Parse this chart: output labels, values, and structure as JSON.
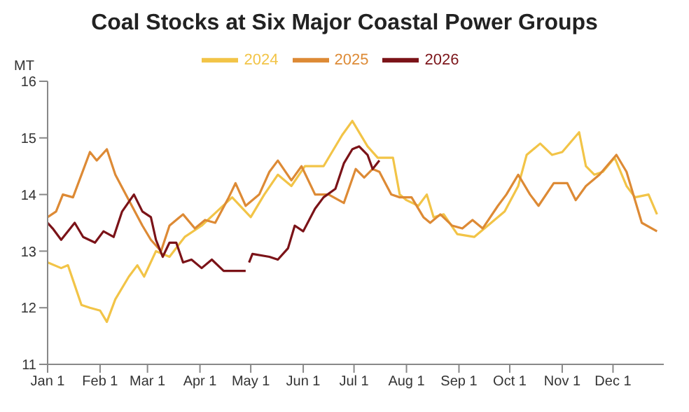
{
  "chart_data": {
    "type": "line",
    "title": "Coal Stocks at Six Major Coastal Power Groups",
    "ylabel": "MT",
    "legend": "top",
    "grid": false,
    "xlim": [
      "--01-01",
      "--12-31"
    ],
    "xticks": [
      {
        "value": "--01-01",
        "label": "Jan 1"
      },
      {
        "value": "--02-01",
        "label": "Feb 1"
      },
      {
        "value": "--03-01",
        "label": "Mar 1"
      },
      {
        "value": "--04-01",
        "label": "Apr 1"
      },
      {
        "value": "--05-01",
        "label": "May 1"
      },
      {
        "value": "--06-01",
        "label": "Jun 1"
      },
      {
        "value": "--07-01",
        "label": "Jul 1"
      },
      {
        "value": "--08-01",
        "label": "Aug 1"
      },
      {
        "value": "--09-01",
        "label": "Sep 1"
      },
      {
        "value": "--10-01",
        "label": "Oct 1"
      },
      {
        "value": "--11-01",
        "label": "Nov 1"
      },
      {
        "value": "--12-01",
        "label": "Dec 1"
      }
    ],
    "ylim": [
      11,
      16
    ],
    "yticks": [
      11,
      12,
      13,
      14,
      15,
      16
    ],
    "series": [
      {
        "name": "2024",
        "color": "#f2c447",
        "x": [
          "--01-01",
          "--01-09",
          "--01-13",
          "--01-17",
          "--01-21",
          "--01-26",
          "--02-01",
          "--02-05",
          "--02-10",
          "--02-18",
          "--02-23",
          "--02-27",
          "--03-06",
          "--03-14",
          "--03-23",
          "--04-02",
          "--04-11",
          "--04-20",
          "--05-01",
          "--05-09",
          "--05-17",
          "--05-25",
          "--06-02",
          "--06-13",
          "--06-24",
          "--06-30",
          "--07-09",
          "--07-15",
          "--07-24",
          "--07-28",
          "--08-01",
          "--08-08",
          "--08-13",
          "--08-17",
          "--08-23",
          "--08-31",
          "--09-10",
          "--09-20",
          "--09-28",
          "--10-06",
          "--10-11",
          "--10-19",
          "--10-26",
          "--11-01",
          "--11-11",
          "--11-15",
          "--11-20",
          "--11-25",
          "--12-02",
          "--12-09",
          "--12-14",
          "--12-22",
          "--12-27"
        ],
        "values": [
          12.8,
          12.7,
          12.75,
          12.4,
          12.05,
          12.0,
          11.95,
          11.75,
          12.15,
          12.55,
          12.75,
          12.55,
          13.0,
          12.9,
          13.25,
          13.45,
          13.7,
          13.95,
          13.6,
          14.0,
          14.35,
          14.15,
          14.5,
          14.5,
          15.05,
          15.3,
          14.85,
          14.65,
          14.65,
          14.0,
          13.9,
          13.8,
          14.0,
          13.6,
          13.65,
          13.3,
          13.25,
          13.5,
          13.7,
          14.15,
          14.7,
          14.9,
          14.7,
          14.75,
          15.1,
          14.5,
          14.35,
          14.4,
          14.65,
          14.15,
          13.95,
          14.0,
          13.65
        ]
      },
      {
        "name": "2025",
        "color": "#dd8a35",
        "x": [
          "--01-01",
          "--01-06",
          "--01-10",
          "--01-16",
          "--01-21",
          "--01-26",
          "--01-30",
          "--02-05",
          "--02-10",
          "--02-18",
          "--02-26",
          "--03-03",
          "--03-09",
          "--03-14",
          "--03-22",
          "--03-29",
          "--04-04",
          "--04-10",
          "--04-18",
          "--04-22",
          "--04-28",
          "--05-06",
          "--05-12",
          "--05-17",
          "--05-25",
          "--05-31",
          "--06-08",
          "--06-16",
          "--06-25",
          "--07-02",
          "--07-07",
          "--07-12",
          "--07-16",
          "--07-23",
          "--07-28",
          "--08-04",
          "--08-11",
          "--08-15",
          "--08-21",
          "--08-28",
          "--09-03",
          "--09-09",
          "--09-15",
          "--09-24",
          "--09-29",
          "--10-06",
          "--10-13",
          "--10-18",
          "--10-27",
          "--11-04",
          "--11-09",
          "--11-15",
          "--11-23",
          "--12-03",
          "--12-09",
          "--12-18",
          "--12-27"
        ],
        "values": [
          13.6,
          13.7,
          14.0,
          13.95,
          14.35,
          14.75,
          14.6,
          14.8,
          14.35,
          13.9,
          13.45,
          13.2,
          13.0,
          13.45,
          13.65,
          13.4,
          13.55,
          13.5,
          13.95,
          14.2,
          13.8,
          14.0,
          14.4,
          14.6,
          14.25,
          14.5,
          14.0,
          14.0,
          13.85,
          14.45,
          14.3,
          14.45,
          14.4,
          14.0,
          13.95,
          13.95,
          13.6,
          13.5,
          13.65,
          13.45,
          13.4,
          13.55,
          13.4,
          13.8,
          14.0,
          14.35,
          14.0,
          13.8,
          14.2,
          14.2,
          13.9,
          14.15,
          14.35,
          14.7,
          14.4,
          13.5,
          13.35
        ]
      },
      {
        "name": "2026",
        "color": "#7b1318",
        "x": [
          "--01-01",
          "--01-04",
          "--01-09",
          "--01-17",
          "--01-22",
          "--01-29",
          "--02-03",
          "--02-09",
          "--02-14",
          "--02-21",
          "--02-26",
          "--03-03",
          "--03-06",
          "--03-10",
          "--03-14",
          "--03-18",
          "--03-22",
          "--03-27",
          "--04-02",
          "--04-08",
          "--04-15",
          "--04-20",
          "--04-28",
          "--04-29",
          "--04-30",
          "--05-02",
          "--05-12",
          "--05-17",
          "--05-23",
          "--05-27",
          "--06-01",
          "--06-08",
          "--06-13",
          "--06-20",
          "--06-25",
          "--06-30",
          "--07-04",
          "--07-09",
          "--07-12",
          "--07-16"
        ],
        "values": [
          13.5,
          13.4,
          13.2,
          13.5,
          13.25,
          13.15,
          13.35,
          13.25,
          13.7,
          14.0,
          13.7,
          13.6,
          13.2,
          12.9,
          13.15,
          13.15,
          12.8,
          12.85,
          12.7,
          12.85,
          12.65,
          12.65,
          12.65,
          null,
          12.8,
          12.95,
          12.9,
          12.85,
          13.05,
          13.45,
          13.35,
          13.75,
          13.95,
          14.1,
          14.55,
          14.8,
          14.85,
          14.7,
          14.45,
          14.6
        ]
      }
    ]
  }
}
